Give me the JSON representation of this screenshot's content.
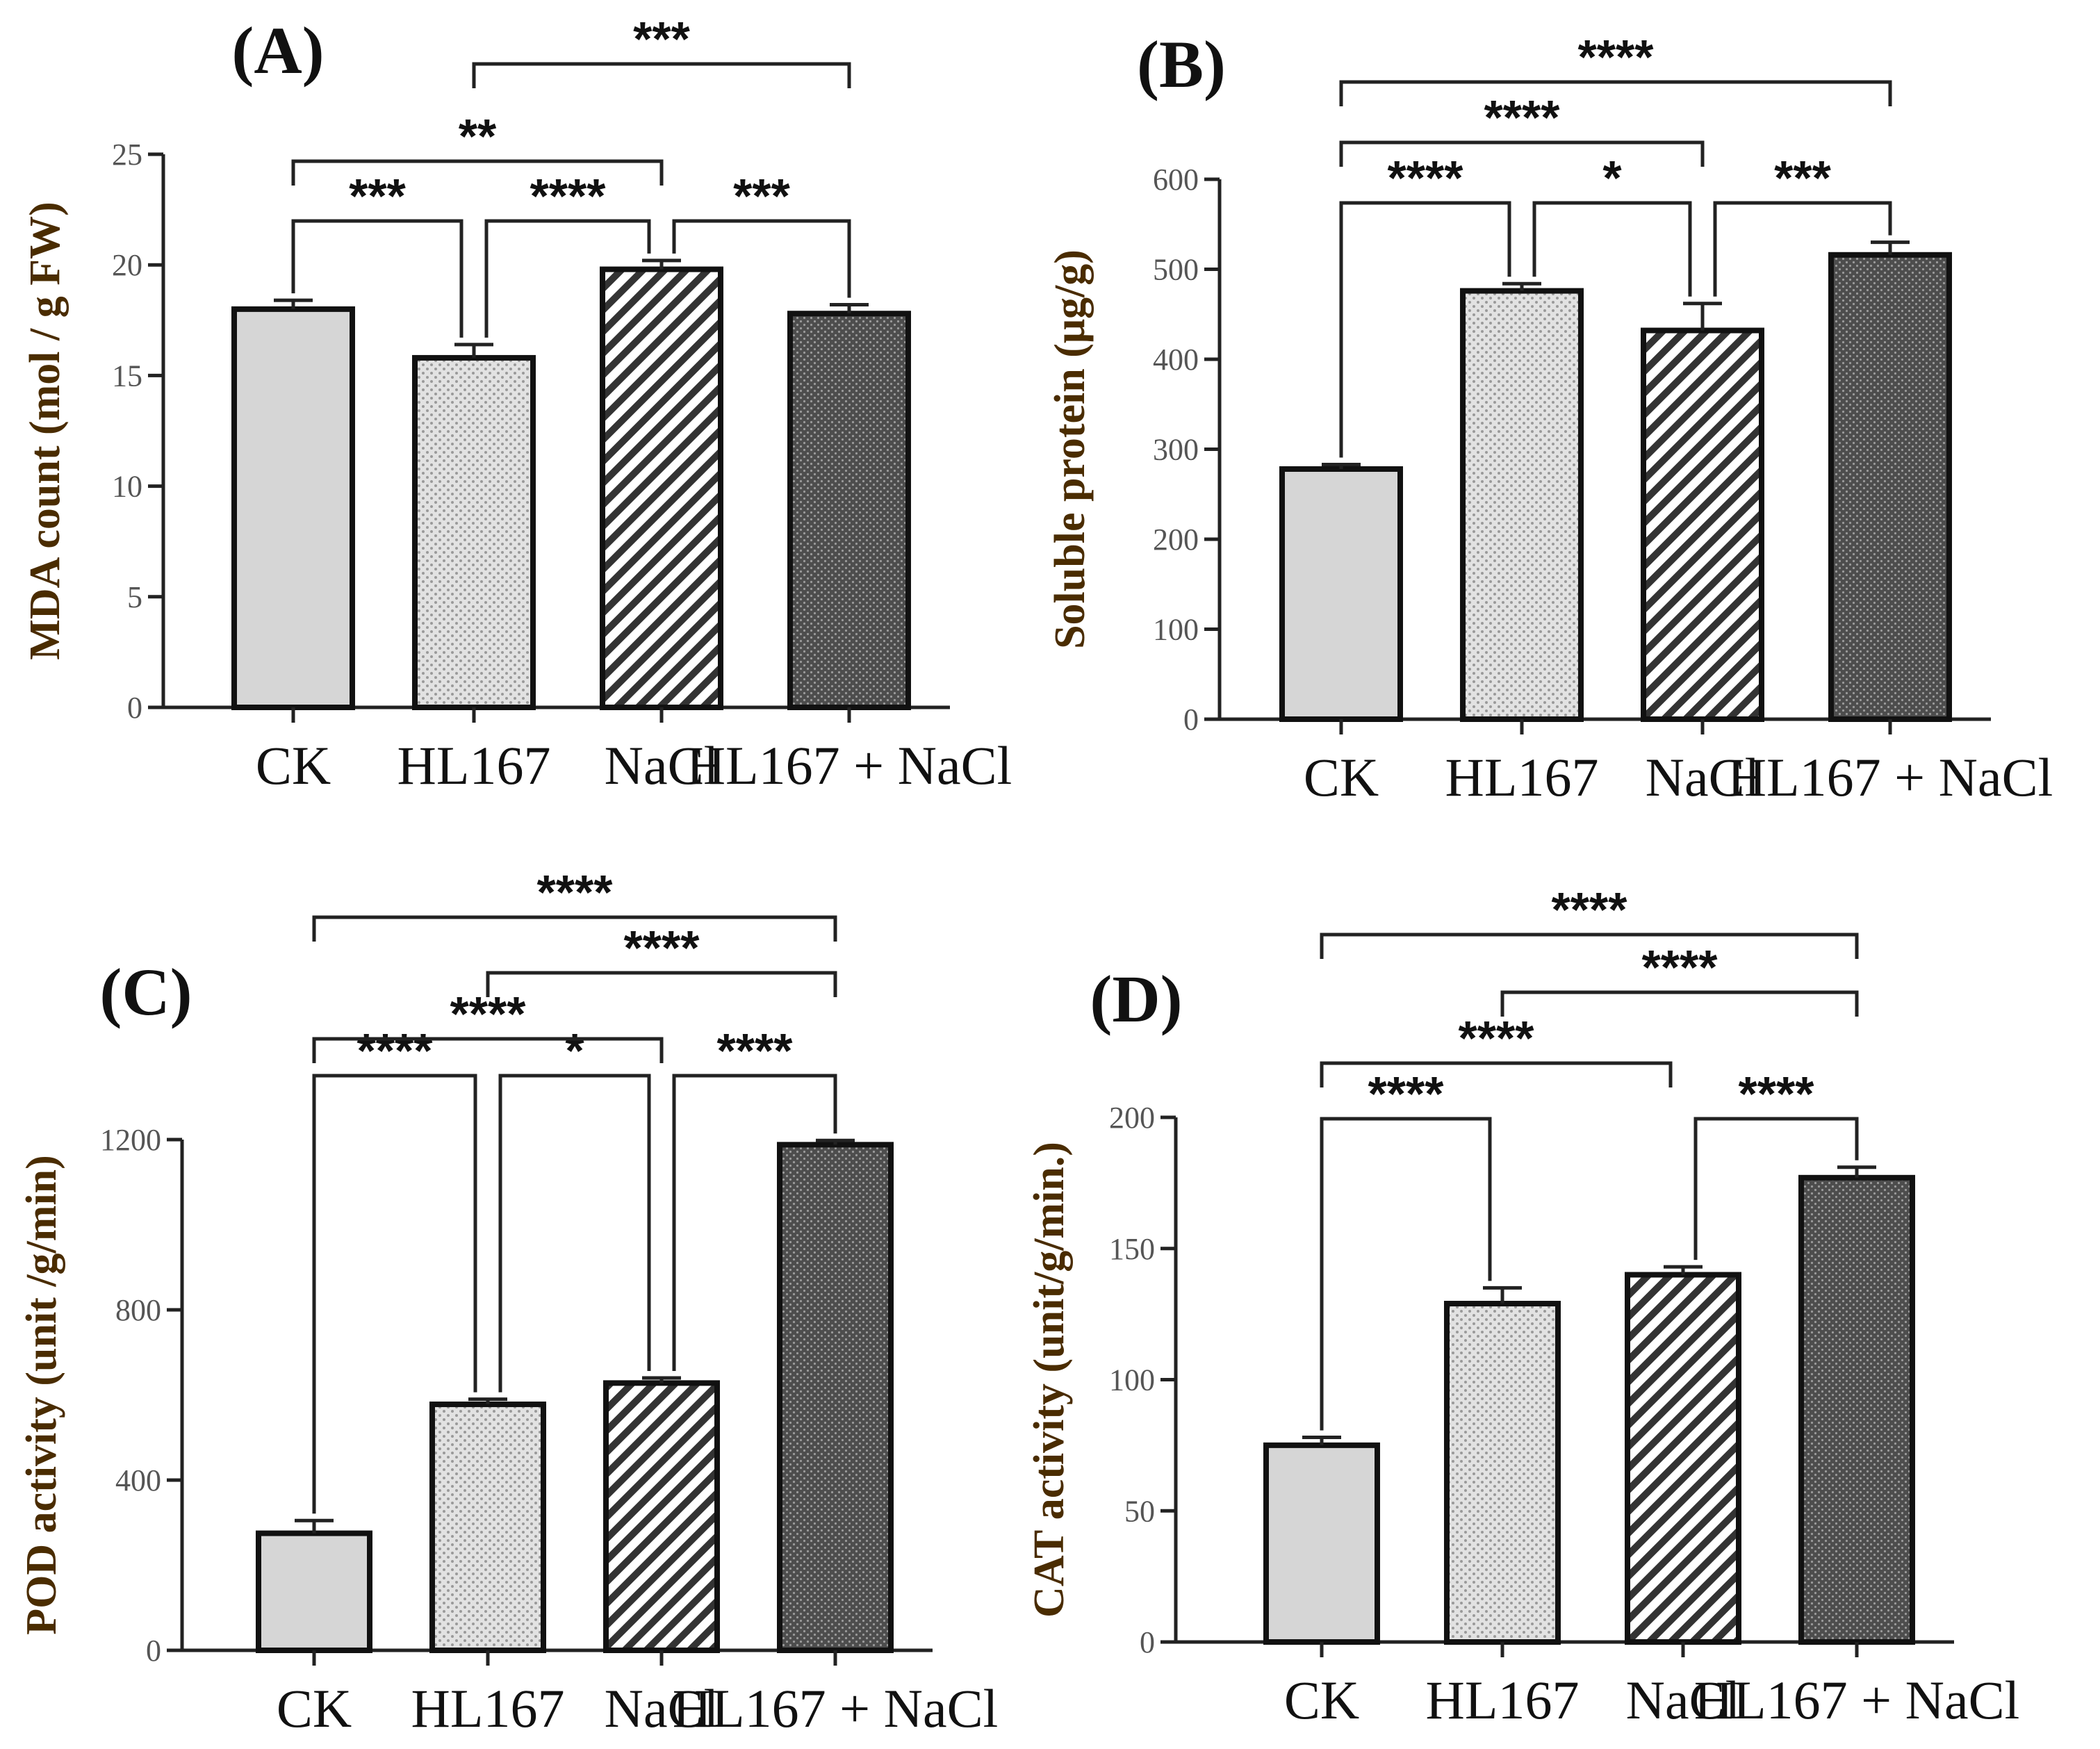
{
  "chart_data": [
    {
      "type": "bar",
      "panel_label": "(A)",
      "categories": [
        "CK",
        "HL167",
        "NaCl",
        "HL167 + NaCl"
      ],
      "values": [
        18.0,
        15.8,
        19.8,
        17.8
      ],
      "errors": [
        0.4,
        0.6,
        0.4,
        0.4
      ],
      "ylabel": "MDA count (mol / g FW)",
      "xlabel": "",
      "ylim": [
        0,
        25
      ],
      "yticks": [
        "0",
        "5",
        "10",
        "15",
        "20",
        "25"
      ],
      "significance": [
        {
          "from": 0,
          "to": 1,
          "label": "***"
        },
        {
          "from": 1,
          "to": 2,
          "label": "****"
        },
        {
          "from": 2,
          "to": 3,
          "label": "***"
        },
        {
          "from": 0,
          "to": 2,
          "label": "**"
        },
        {
          "from": 1,
          "to": 3,
          "label": "***"
        }
      ]
    },
    {
      "type": "bar",
      "panel_label": "(B)",
      "categories": [
        "CK",
        "HL167",
        "NaCl",
        "HL167 + NaCl"
      ],
      "values": [
        278,
        476,
        432,
        516
      ],
      "errors": [
        5,
        8,
        30,
        14
      ],
      "ylabel": "Soluble protein (μg/g)",
      "xlabel": "",
      "ylim": [
        0,
        600
      ],
      "yticks": [
        "0",
        "100",
        "200",
        "300",
        "400",
        "500",
        "600"
      ],
      "significance": [
        {
          "from": 0,
          "to": 1,
          "label": "****"
        },
        {
          "from": 1,
          "to": 2,
          "label": "*"
        },
        {
          "from": 2,
          "to": 3,
          "label": "***"
        },
        {
          "from": 0,
          "to": 2,
          "label": "****"
        },
        {
          "from": 0,
          "to": 3,
          "label": "****"
        }
      ]
    },
    {
      "type": "bar",
      "panel_label": "(C)",
      "categories": [
        "CK",
        "HL167",
        "NaCl",
        "HL167 + NaCl"
      ],
      "values": [
        275,
        578,
        628,
        1188
      ],
      "errors": [
        30,
        12,
        12,
        10
      ],
      "ylabel": "POD activity (unit /g/min)",
      "xlabel": "",
      "ylim": [
        0,
        1200
      ],
      "yticks": [
        "0",
        "400",
        "800",
        "1200"
      ],
      "significance": [
        {
          "from": 0,
          "to": 1,
          "label": "****"
        },
        {
          "from": 1,
          "to": 2,
          "label": "*"
        },
        {
          "from": 2,
          "to": 3,
          "label": "****"
        },
        {
          "from": 0,
          "to": 2,
          "label": "****"
        },
        {
          "from": 1,
          "to": 3,
          "label": "****"
        },
        {
          "from": 0,
          "to": 3,
          "label": "****"
        }
      ]
    },
    {
      "type": "bar",
      "panel_label": "(D)",
      "categories": [
        "CK",
        "HL167",
        "NaCl",
        "HL167 + NaCl"
      ],
      "values": [
        75,
        129,
        140,
        177
      ],
      "errors": [
        3,
        6,
        3,
        4
      ],
      "ylabel": "CAT activity (unit/g/min.)",
      "xlabel": "",
      "ylim": [
        0,
        200
      ],
      "yticks": [
        "0",
        "50",
        "100",
        "150",
        "200"
      ],
      "significance": [
        {
          "from": 0,
          "to": 1,
          "label": "****"
        },
        {
          "from": 2,
          "to": 3,
          "label": "****"
        },
        {
          "from": 0,
          "to": 2,
          "label": "****"
        },
        {
          "from": 1,
          "to": 3,
          "label": "****"
        },
        {
          "from": 0,
          "to": 3,
          "label": "****"
        }
      ]
    }
  ],
  "colors": {
    "ck_fill": "#d6d6d6",
    "hl167_fill": "#e2e2e2",
    "hl167_dot": "#9a9a9a",
    "nacl_fill": "#ffffff",
    "nacl_stripe": "#333333",
    "combo_fill": "#4d4d4d",
    "combo_dot": "#9a9a9a"
  }
}
